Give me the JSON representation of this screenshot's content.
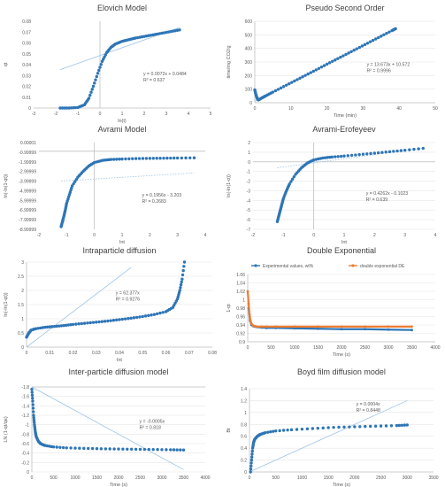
{
  "figure": {
    "palette": {
      "series": "#2e75b6",
      "trend": "#9dc3e6",
      "axis": "#bfbfbf",
      "grid": "#e6e6e6",
      "text": "#595959",
      "orange": "#ed7d31"
    }
  },
  "chart_data": [
    {
      "id": "elovich",
      "type": "scatter",
      "title": "Elovich Model",
      "xlabel": "ln(t)",
      "ylabel": "qt",
      "xlim": [
        -3,
        5
      ],
      "ylim": [
        0,
        0.08
      ],
      "xticks": [
        "-3",
        "-2",
        "-1",
        "0",
        "1",
        "2",
        "3",
        "4",
        "5"
      ],
      "yticks": [
        "0",
        "0.01",
        "0.02",
        "0.03",
        "0.04",
        "0.05",
        "0.06",
        "0.07",
        "0.08"
      ],
      "grid": false,
      "series": [
        {
          "x": [
            -1.8,
            -1.4,
            -1.0,
            -0.7,
            -0.5,
            -0.3,
            -0.1,
            0.1,
            0.3,
            0.5,
            0.7,
            1.0,
            1.3,
            1.6,
            2.0,
            2.4,
            2.8,
            3.2,
            3.6
          ],
          "y": [
            0.0,
            0.0,
            0.0005,
            0.003,
            0.009,
            0.02,
            0.032,
            0.043,
            0.051,
            0.056,
            0.059,
            0.0615,
            0.063,
            0.0645,
            0.066,
            0.0675,
            0.069,
            0.0705,
            0.072
          ]
        }
      ],
      "trendline": {
        "slope": 0.0072,
        "intercept": 0.0484,
        "x_range": [
          -1.8,
          3.6
        ]
      },
      "annotations": [
        "y = 0.0072x + 0.0484",
        "R² = 0.637"
      ]
    },
    {
      "id": "pso",
      "type": "scatter",
      "title": "Pseudo Second Order",
      "xlabel": "Time (min)",
      "ylabel": "time/mg CO2/g",
      "xlim": [
        0,
        50
      ],
      "ylim": [
        0,
        600
      ],
      "xticks": [
        "0",
        "10",
        "20",
        "30",
        "40",
        "50"
      ],
      "yticks": [
        "0",
        "100",
        "200",
        "300",
        "400",
        "500",
        "600"
      ],
      "grid": true,
      "series": [
        {
          "x": [
            0,
            0.3,
            0.7,
            1,
            2,
            3,
            5,
            8,
            11,
            14,
            17,
            20,
            23,
            26,
            29,
            32,
            35,
            38,
            39
          ],
          "y": [
            95,
            60,
            30,
            20,
            36,
            50,
            78,
            119,
            160,
            201,
            242,
            284,
            325,
            366,
            407,
            449,
            490,
            531,
            545
          ]
        }
      ],
      "trendline": {
        "slope": 13.673,
        "intercept": 10.572,
        "x_range": [
          0,
          39
        ]
      },
      "annotations": [
        "y = 13.673x + 10.572",
        "R² = 0.9996"
      ]
    },
    {
      "id": "avrami",
      "type": "scatter",
      "title": "Avrami Model",
      "xlabel": "lnt",
      "ylabel": "ln(-ln(1-qt))",
      "xlim": [
        -2,
        4
      ],
      "ylim": [
        -9,
        1
      ],
      "xticks": [
        "-2",
        "-1",
        "0",
        "1",
        "2",
        "3",
        "4"
      ],
      "yticks": [
        "-8.99999",
        "-7.99999",
        "-6.99999",
        "-5.99999",
        "-4.99999",
        "-3.99999",
        "-2.99999",
        "-1.99999",
        "-0.99999",
        "0.00001"
      ],
      "grid": false,
      "series": [
        {
          "x": [
            -1.2,
            -1.15,
            -1.1,
            -1.05,
            -1.0,
            -0.9,
            -0.8,
            -0.6,
            -0.4,
            -0.2,
            0.0,
            0.3,
            0.6,
            1.0,
            1.5,
            2.0,
            2.5,
            3.0,
            3.6
          ],
          "y": [
            -8.7,
            -8.1,
            -7.5,
            -6.8,
            -6.0,
            -5.0,
            -4.0,
            -3.0,
            -2.3,
            -1.7,
            -1.3,
            -1.05,
            -0.95,
            -0.9,
            -0.85,
            -0.82,
            -0.8,
            -0.78,
            -0.76
          ]
        }
      ],
      "trendline": {
        "slope": 0.1956,
        "intercept": -3.203,
        "x_range": [
          -1.2,
          3.6
        ]
      },
      "annotations": [
        "y = 0.1956x - 3.203",
        "R² = 0.2683"
      ]
    },
    {
      "id": "erofeyeev",
      "type": "scatter",
      "title": "Avrami-Erofeyeev",
      "xlabel": "lnt",
      "ylabel": "ln(-ln(1-α))",
      "xlim": [
        -2,
        4
      ],
      "ylim": [
        -7,
        2
      ],
      "xticks": [
        "-2",
        "-1",
        "0",
        "1",
        "2",
        "3",
        "4"
      ],
      "yticks": [
        "-7",
        "-6",
        "-5",
        "-4",
        "-3",
        "-2",
        "-1",
        "0",
        "1",
        "2"
      ],
      "grid": true,
      "series": [
        {
          "x": [
            -1.2,
            -1.15,
            -1.1,
            -1.05,
            -1.0,
            -0.9,
            -0.8,
            -0.6,
            -0.4,
            -0.2,
            0.0,
            0.3,
            0.6,
            1.0,
            1.5,
            2.0,
            2.5,
            3.0,
            3.6
          ],
          "y": [
            -6.2,
            -5.6,
            -5.0,
            -4.4,
            -3.8,
            -3.0,
            -2.3,
            -1.3,
            -0.6,
            -0.1,
            0.2,
            0.4,
            0.5,
            0.6,
            0.75,
            0.9,
            1.05,
            1.2,
            1.4
          ]
        }
      ],
      "trendline": {
        "slope": 0.4262,
        "intercept": -0.1023,
        "x_range": [
          -1.2,
          3.6
        ]
      },
      "annotations": [
        "y = 0.4262x - 0.1023",
        "R² = 0.639"
      ]
    },
    {
      "id": "intraparticle",
      "type": "scatter",
      "title": "Intraparticle diffusion",
      "xlabel": "lnt",
      "ylabel": "ln(-ln(1-qt))",
      "xlim": [
        0,
        0.08
      ],
      "ylim": [
        0,
        3
      ],
      "xticks": [
        "0",
        "0.01",
        "0.02",
        "0.03",
        "0.04",
        "0.05",
        "0.06",
        "0.07",
        "0.08"
      ],
      "yticks": [
        "0",
        "0.5",
        "1",
        "1.5",
        "2",
        "2.5",
        "3"
      ],
      "grid": true,
      "series": [
        {
          "x": [
            0.0,
            0.001,
            0.002,
            0.004,
            0.008,
            0.012,
            0.016,
            0.02,
            0.025,
            0.03,
            0.035,
            0.04,
            0.045,
            0.05,
            0.055,
            0.06,
            0.063,
            0.065,
            0.066,
            0.067,
            0.068
          ],
          "y": [
            0.35,
            0.5,
            0.6,
            0.65,
            0.7,
            0.73,
            0.76,
            0.8,
            0.84,
            0.88,
            0.92,
            0.97,
            1.02,
            1.08,
            1.15,
            1.25,
            1.4,
            1.7,
            2.0,
            2.4,
            3.0
          ]
        }
      ],
      "trendline": {
        "slope": 62.377,
        "intercept": 0,
        "x_range": [
          0,
          0.045
        ]
      },
      "annotations": [
        "y = 62.377x",
        "R² = 0.9276"
      ]
    },
    {
      "id": "double_exp",
      "type": "line",
      "title": "Double Exponential",
      "xlabel": "Time (s)",
      "ylabel": "1-qt",
      "xlim": [
        0,
        4000
      ],
      "ylim": [
        0.9,
        1.06
      ],
      "xticks": [
        "0",
        "500",
        "1000",
        "1500",
        "2000",
        "2500",
        "3000",
        "3500",
        "4000"
      ],
      "yticks": [
        "0.9",
        "0.92",
        "0.94",
        "0.96",
        "0.98",
        "1",
        "1.02",
        "1.04",
        "1.06"
      ],
      "grid": true,
      "legend": "top",
      "series": [
        {
          "name": "Experimental values, wt%",
          "color": "#2e75b6",
          "x": [
            20,
            50,
            80,
            120,
            160,
            200,
            300,
            400,
            600,
            1000,
            1500,
            2000,
            2500,
            3000,
            3500
          ],
          "y": [
            0.98,
            0.95,
            0.94,
            0.937,
            0.936,
            0.935,
            0.934,
            0.933,
            0.933,
            0.932,
            0.931,
            0.93,
            0.93,
            0.929,
            0.928
          ]
        },
        {
          "name": "double exponential DE",
          "color": "#ed7d31",
          "x": [
            0,
            20,
            40,
            60,
            80,
            120,
            160,
            200,
            300,
            400,
            600,
            1000,
            1500,
            2000,
            2500,
            3000,
            3500
          ],
          "y": [
            1.02,
            0.99,
            0.965,
            0.95,
            0.943,
            0.938,
            0.937,
            0.936,
            0.936,
            0.936,
            0.936,
            0.936,
            0.936,
            0.936,
            0.936,
            0.936,
            0.936
          ]
        }
      ]
    },
    {
      "id": "interparticle",
      "type": "scatter",
      "title": "Inter-particle diffusion model",
      "xlabel": "Time (s)",
      "ylabel": "LN (1-qt/qe)",
      "xlim": [
        0,
        4000
      ],
      "ylim": [
        -1.8,
        0
      ],
      "xticks": [
        "0",
        "500",
        "1000",
        "1500",
        "2000",
        "2500",
        "3000",
        "3500",
        "4000"
      ],
      "yticks": [
        "0",
        "-0.2",
        "-0.4",
        "-0.6",
        "-0.8",
        "-1",
        "-1.2",
        "-1.4",
        "-1.6",
        "-1.8"
      ],
      "grid": true,
      "series": [
        {
          "x": [
            0,
            20,
            40,
            60,
            80,
            100,
            150,
            200,
            300,
            500,
            800,
            1200,
            1600,
            2000,
            2400,
            2800,
            3200,
            3500
          ],
          "y": [
            -0.05,
            -0.3,
            -0.6,
            -0.8,
            -0.95,
            -1.05,
            -1.15,
            -1.2,
            -1.24,
            -1.27,
            -1.29,
            -1.3,
            -1.31,
            -1.315,
            -1.32,
            -1.325,
            -1.33,
            -1.335
          ]
        }
      ],
      "trendline": {
        "slope": -0.0005,
        "intercept": 0,
        "x_range": [
          0,
          3500
        ]
      },
      "annotations": [
        "y = -0.0005x",
        "R² = 0.818"
      ]
    },
    {
      "id": "boyd",
      "type": "scatter",
      "title": "Boyd film diffusion model",
      "xlabel": "Time (s)",
      "ylabel": "Bt",
      "xlim": [
        0,
        3500
      ],
      "ylim": [
        0,
        1.4
      ],
      "xticks": [
        "0",
        "500",
        "1000",
        "1500",
        "2000",
        "2500",
        "3000",
        "3500"
      ],
      "yticks": [
        "0",
        "0.2",
        "0.4",
        "0.6",
        "0.8",
        "1",
        "1.2",
        "1.4"
      ],
      "grid": true,
      "series": [
        {
          "x": [
            20,
            40,
            60,
            80,
            100,
            150,
            200,
            300,
            500,
            800,
            1200,
            1600,
            2000,
            2400,
            2800,
            3000
          ],
          "y": [
            0.0,
            0.2,
            0.4,
            0.5,
            0.55,
            0.6,
            0.63,
            0.66,
            0.69,
            0.71,
            0.73,
            0.75,
            0.76,
            0.77,
            0.78,
            0.79
          ]
        }
      ],
      "trendline": {
        "slope": 0.0004,
        "intercept": 0,
        "x_range": [
          0,
          3000
        ]
      },
      "annotations": [
        "y = 0.0004x",
        "R² = 0.8448"
      ]
    }
  ]
}
